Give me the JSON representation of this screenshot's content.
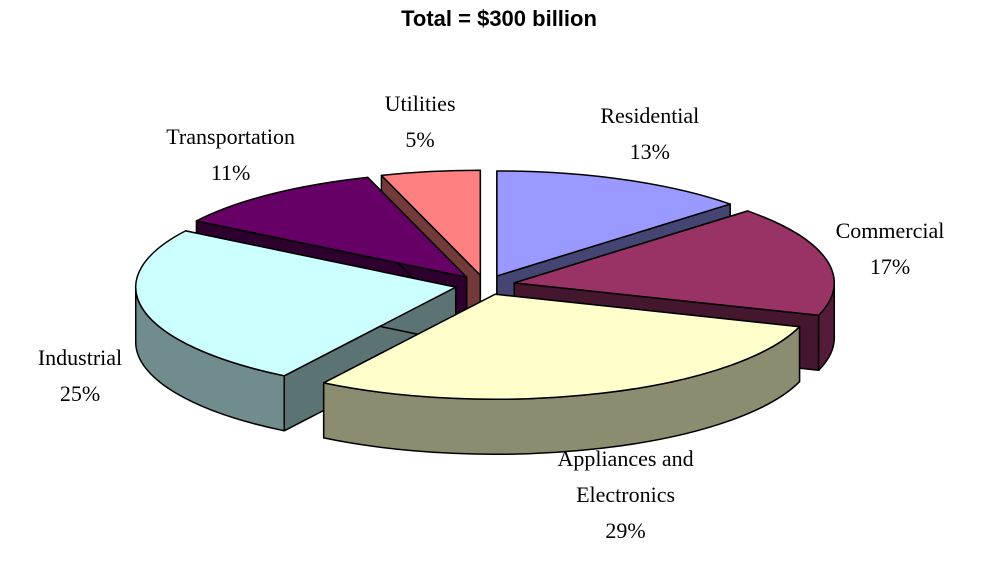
{
  "chart_data": {
    "type": "pie3d",
    "title": "Total = $300 billion",
    "categories": [
      "Residential",
      "Commercial",
      "Appliances and Electronics",
      "Industrial",
      "Transportation",
      "Utilities"
    ],
    "values": [
      13,
      17,
      29,
      25,
      11,
      5
    ],
    "value_labels": [
      "13%",
      "17%",
      "29%",
      "25%",
      "11%",
      "5%"
    ],
    "colors": [
      "#9999ff",
      "#993366",
      "#ffffcc",
      "#ccffff",
      "#660066",
      "#ff8080"
    ]
  }
}
